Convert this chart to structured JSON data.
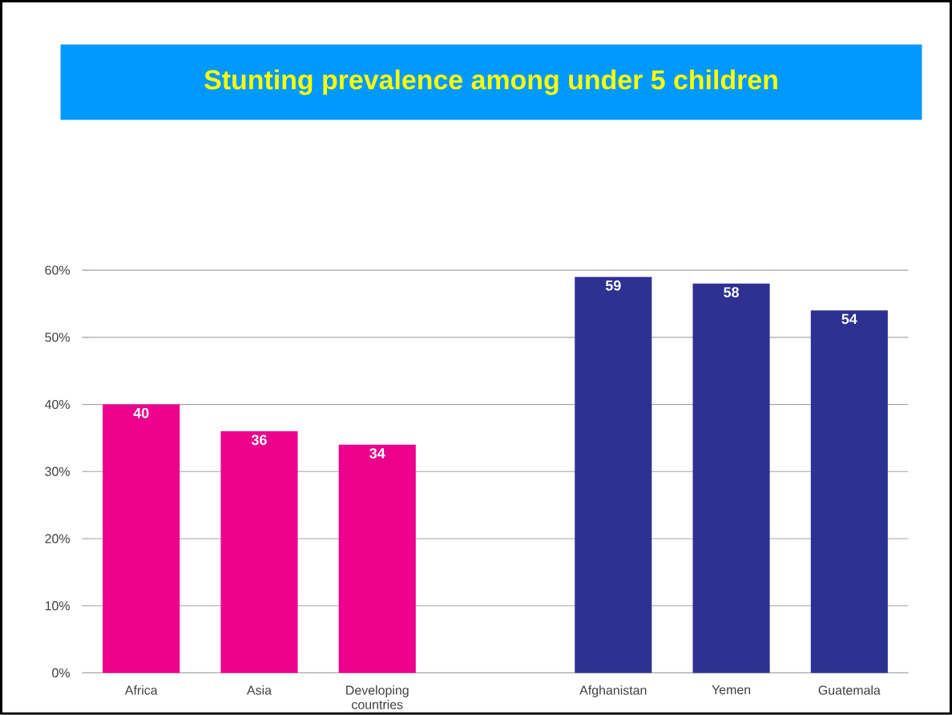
{
  "chart_data": {
    "type": "bar",
    "title": "Stunting prevalence among under 5 children",
    "categories": [
      "Africa",
      "Asia",
      "Developing countries",
      null,
      "Afghanistan",
      "Yemen",
      "Guatemala"
    ],
    "values": [
      40,
      36,
      34,
      null,
      59,
      58,
      54
    ],
    "colors": [
      "#ec008c",
      "#ec008c",
      "#ec008c",
      "#ec008c",
      "#2e3192",
      "#2e3192",
      "#2e3192"
    ],
    "ylim": [
      0,
      60
    ],
    "yticks": [
      {
        "value": 0,
        "label": "0%"
      },
      {
        "value": 10,
        "label": "10%"
      },
      {
        "value": 20,
        "label": "20%"
      },
      {
        "value": 30,
        "label": "30%"
      },
      {
        "value": 40,
        "label": "40%"
      },
      {
        "value": 50,
        "label": "50%"
      },
      {
        "value": 60,
        "label": "60%"
      }
    ],
    "grid": "y",
    "data_labels": true
  }
}
